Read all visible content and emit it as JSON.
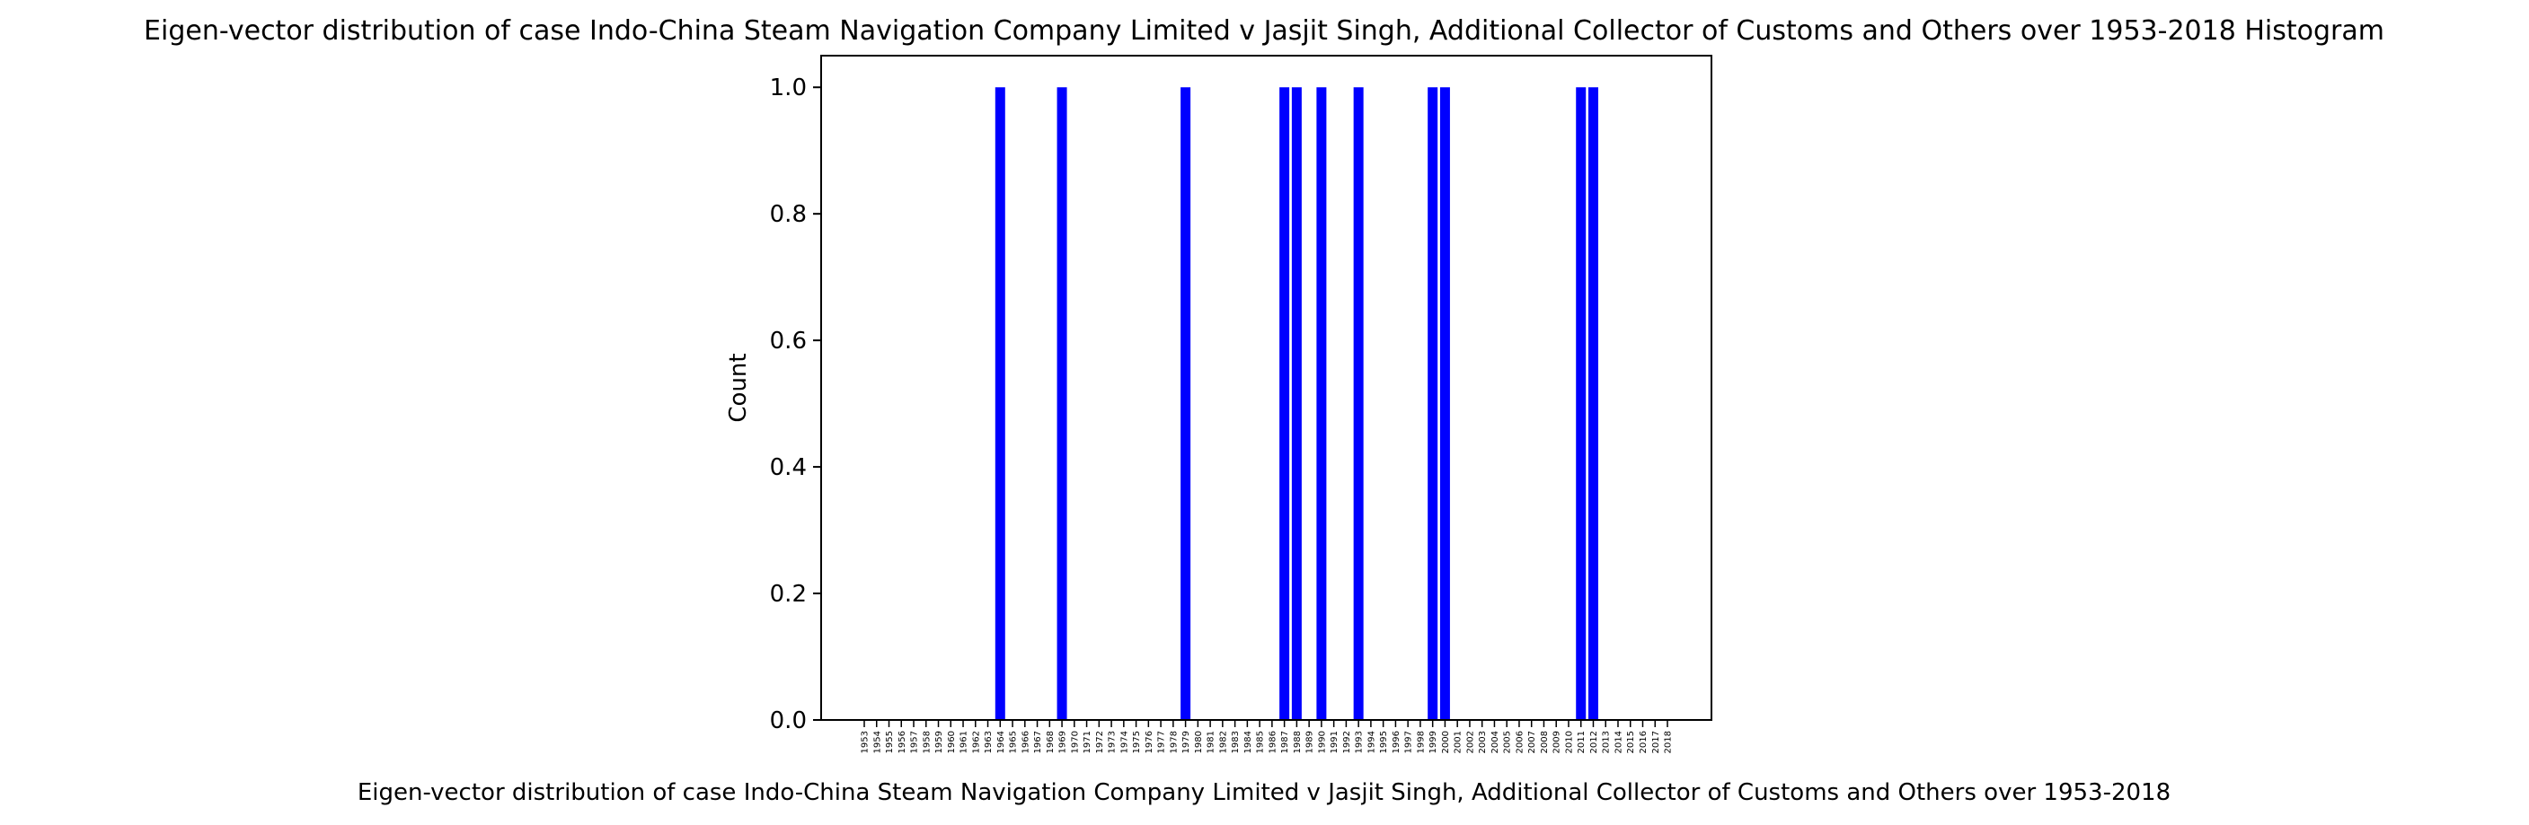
{
  "chart_data": {
    "type": "bar",
    "title": "Eigen-vector distribution of case Indo-China Steam Navigation Company Limited v Jasjit Singh, Additional Collector of Customs and Others over 1953-2018 Histogram",
    "xlabel": "Eigen-vector distribution of case Indo-China Steam Navigation Company Limited v Jasjit Singh, Additional Collector of Customs and Others over 1953-2018",
    "ylabel": "Count",
    "ylim": [
      0,
      1.05
    ],
    "yticks": [
      "0.0",
      "0.2",
      "0.4",
      "0.6",
      "0.8",
      "1.0"
    ],
    "bar_color": "#0000ff",
    "grid": false,
    "legend": "none",
    "categories": [
      "1953",
      "1954",
      "1955",
      "1956",
      "1957",
      "1958",
      "1959",
      "1960",
      "1961",
      "1962",
      "1963",
      "1964",
      "1965",
      "1966",
      "1967",
      "1968",
      "1969",
      "1970",
      "1971",
      "1972",
      "1973",
      "1974",
      "1975",
      "1976",
      "1977",
      "1978",
      "1979",
      "1980",
      "1981",
      "1982",
      "1983",
      "1984",
      "1985",
      "1986",
      "1987",
      "1988",
      "1989",
      "1990",
      "1991",
      "1992",
      "1993",
      "1994",
      "1995",
      "1996",
      "1997",
      "1998",
      "1999",
      "2000",
      "2001",
      "2002",
      "2003",
      "2004",
      "2005",
      "2006",
      "2007",
      "2008",
      "2009",
      "2010",
      "2011",
      "2012",
      "2013",
      "2014",
      "2015",
      "2016",
      "2017",
      "2018"
    ],
    "values": [
      0,
      0,
      0,
      0,
      0,
      0,
      0,
      0,
      0,
      0,
      0,
      1,
      0,
      0,
      0,
      0,
      1,
      0,
      0,
      0,
      0,
      0,
      0,
      0,
      0,
      0,
      1,
      0,
      0,
      0,
      0,
      0,
      0,
      0,
      1,
      1,
      0,
      1,
      0,
      0,
      1,
      0,
      0,
      0,
      0,
      0,
      1,
      1,
      0,
      0,
      0,
      0,
      0,
      0,
      0,
      0,
      0,
      0,
      1,
      1,
      0,
      0,
      0,
      0,
      0,
      0
    ]
  }
}
